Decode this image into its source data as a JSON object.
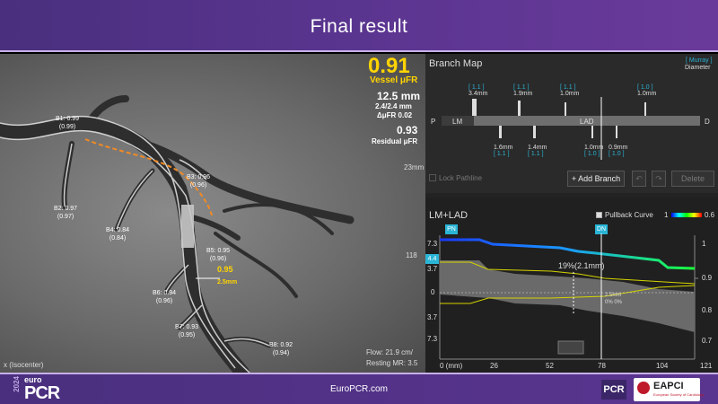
{
  "title": "Final  result",
  "angio": {
    "big_value": "0.91",
    "vessel_label": "Vessel μFR",
    "length": "12.5 mm",
    "diam": "2.4/2.4 mm",
    "delta": "ΔμFR  0.02",
    "residual_value": "0.93",
    "residual_label": "Residual μFR",
    "scale_23": "23mm",
    "scale_118": "118",
    "branches": {
      "b1": "B1: 0.99\n(0.99)",
      "b2": "B2: 0.97\n(0.97)",
      "b3": "B3: 0.96\n(0.96)",
      "b4": "B4: 0.84\n(0.84)",
      "b5": "B5: 0.95\n(0.96)",
      "b6": "B6: 0.94\n(0.96)",
      "b7": "B7: 0.93\n(0.95)",
      "b8": "B8: 0.92\n(0.94)"
    },
    "stent_value": "0.95",
    "stent_len": "2.5mm",
    "isocenter": "x (Isocenter)",
    "flow": "Flow: 21.9 cm/",
    "resting": "Resting MR: 3.5"
  },
  "branch_map": {
    "title": "Branch Map",
    "murray": "[ Murray ]",
    "diameter": "Diameter",
    "p_label": "P",
    "d_label": "D",
    "lm": "LM",
    "lad": "LAD",
    "top_ratios": [
      "[ 1.1 ]",
      "[ 1.1 ]",
      "[ 1.1 ]",
      "[ 1.0 ]"
    ],
    "top_sizes": [
      "3.4mm",
      "1.9mm",
      "1.0mm",
      "1.0mm"
    ],
    "bottom_sizes": [
      "1.6mm",
      "1.4mm",
      "1.0mm",
      "0.9mm"
    ],
    "bottom_ratios": [
      "[ 1.1 ]",
      "[ 1.1 ]",
      "[ 1.0 ]",
      "[ 1.0 ]"
    ],
    "lock": "Lock Pathline",
    "add_branch": "+ Add Branch",
    "delete": "Delete"
  },
  "pullback": {
    "title": "LM+LAD",
    "checkbox": "Pullback Curve",
    "scale_min": "1",
    "scale_max": "0.6",
    "pn": "PN",
    "dn": "DN",
    "marker": "4.4",
    "left_ticks": [
      "7.3",
      "3.7",
      "0",
      "3.7",
      "7.3"
    ],
    "right_ticks": [
      "1",
      "0.9",
      "0.8",
      "0.7"
    ],
    "x_ticks": [
      "0 (mm)",
      "26",
      "52",
      "78",
      "104",
      "121"
    ],
    "stenosis": "19%(2.1mm)",
    "annot1": "2.5mm",
    "annot2": "0% 0%"
  },
  "footer": {
    "year": "2024",
    "euro": "euro",
    "pcr": "PCR",
    "url": "EuroPCR.com",
    "logo_pcr": "PCR",
    "logo_eapci": "EAPCI",
    "eapci_sub": "European Society of Cardiology"
  },
  "colors": {
    "accent_yellow": "#ffd400",
    "cyan": "#2ab4d6",
    "purple": "#5a3590"
  }
}
